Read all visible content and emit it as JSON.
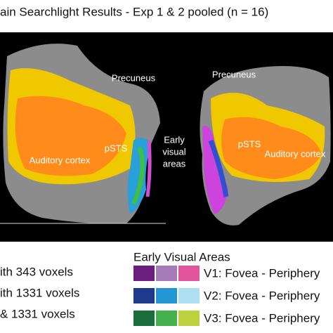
{
  "title": "ain Searchlight Results - Exp 1 & 2 pooled (n = 16)",
  "brain_labels": {
    "left_precuneus": "Precuneus",
    "right_precuneus": "Precuneus",
    "left_psts": "pSTS",
    "right_psts": "pSTS",
    "left_auditory": "Auditory cortex",
    "right_auditory": "Auditory cortex",
    "early_visual": [
      "Early",
      "visual",
      "areas"
    ]
  },
  "legend_left": [
    "ith 343 voxels",
    "ith 1331 voxels",
    "& 1331 voxels"
  ],
  "legend_right": {
    "title": "Early Visual Areas",
    "rows": [
      {
        "label": "V1: Fovea - Periphery",
        "colors": [
          "#6a1f7e",
          "#a67cb8",
          "#e2559c"
        ]
      },
      {
        "label": "V2: Fovea - Periphery",
        "colors": [
          "#1c3b8c",
          "#2596d4",
          "#aee0f2"
        ]
      },
      {
        "label": "V3: Fovea - Periphery",
        "colors": [
          "#1b6e3c",
          "#44b04e",
          "#bcd13e"
        ]
      }
    ]
  }
}
